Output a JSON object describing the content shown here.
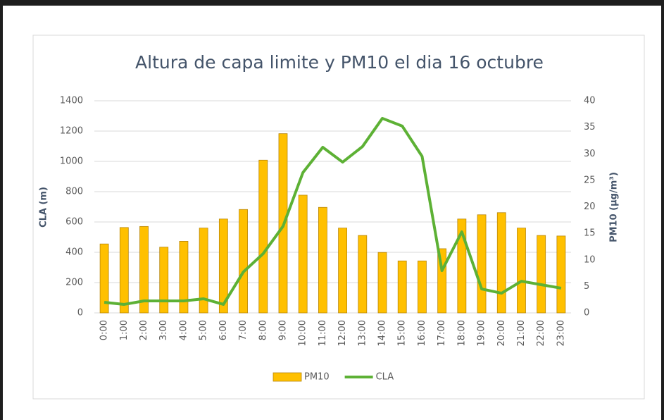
{
  "chart_data": {
    "type": "bar_line",
    "title": "Altura de capa limite y PM10 el dia 16 octubre",
    "y_label": "CLA (m)",
    "y2_label": "PM10 (µg/m³)",
    "categories": [
      "0:00",
      "1:00",
      "2:00",
      "3:00",
      "4:00",
      "5:00",
      "6:00",
      "7:00",
      "8:00",
      "9:00",
      "10:00",
      "11:00",
      "12:00",
      "13:00",
      "14:00",
      "15:00",
      "16:00",
      "17:00",
      "18:00",
      "19:00",
      "20:00",
      "21:00",
      "22:00",
      "23:00"
    ],
    "series": [
      {
        "name": "PM10",
        "type": "bar",
        "axis": "y2",
        "color": "#ffc000",
        "values": [
          13,
          16.1,
          16.3,
          12.4,
          13.5,
          16,
          17.7,
          19.5,
          28.8,
          33.8,
          22.2,
          19.9,
          16,
          14.6,
          11.4,
          9.8,
          9.8,
          12.1,
          17.7,
          18.5,
          18.9,
          16,
          14.6,
          14.5
        ]
      },
      {
        "name": "CLA",
        "type": "line",
        "color": "#5db135",
        "values": [
          70,
          56,
          79,
          79,
          79,
          93,
          56,
          270,
          391,
          572,
          926,
          1093,
          995,
          1098,
          1284,
          1233,
          1033,
          279,
          535,
          158,
          130,
          209,
          186,
          163
        ]
      }
    ],
    "ylim": [
      0,
      1400
    ],
    "yticks": [
      0,
      200,
      400,
      600,
      800,
      1000,
      1200,
      1400
    ],
    "y2lim": [
      0,
      40
    ],
    "y2ticks": [
      0,
      5,
      10,
      15,
      20,
      25,
      30,
      35,
      40
    ],
    "grid": true,
    "legend": "bottom"
  }
}
